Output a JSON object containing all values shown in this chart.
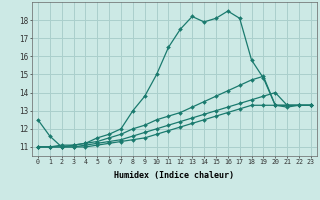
{
  "xlabel": "Humidex (Indice chaleur)",
  "background_color": "#cce9e5",
  "grid_color": "#aacfcc",
  "line_color": "#1a7a6e",
  "xlim": [
    -0.5,
    23.5
  ],
  "ylim": [
    10.5,
    19.0
  ],
  "xtick_vals": [
    0,
    1,
    2,
    3,
    4,
    5,
    6,
    7,
    8,
    9,
    10,
    11,
    12,
    13,
    14,
    15,
    16,
    17,
    18,
    19,
    20,
    21,
    22,
    23
  ],
  "ytick_vals": [
    11,
    12,
    13,
    14,
    15,
    16,
    17,
    18
  ],
  "series": [
    {
      "x": [
        0,
        1,
        2,
        3,
        4,
        5,
        6,
        7,
        8,
        9,
        10,
        11,
        12,
        13,
        14,
        15,
        16,
        17,
        18,
        19,
        20,
        21,
        22,
        23
      ],
      "y": [
        12.5,
        11.6,
        11.0,
        11.1,
        11.2,
        11.5,
        11.7,
        12.0,
        13.0,
        13.8,
        15.0,
        16.5,
        17.5,
        18.2,
        17.9,
        18.1,
        18.5,
        18.1,
        15.8,
        14.8,
        13.3,
        13.2,
        13.3,
        13.3
      ]
    },
    {
      "x": [
        0,
        1,
        2,
        3,
        4,
        5,
        6,
        7,
        8,
        9,
        10,
        11,
        12,
        13,
        14,
        15,
        16,
        17,
        18,
        19,
        20,
        21,
        22,
        23
      ],
      "y": [
        11.0,
        11.0,
        11.1,
        11.1,
        11.2,
        11.3,
        11.5,
        11.7,
        12.0,
        12.2,
        12.5,
        12.7,
        12.9,
        13.2,
        13.5,
        13.8,
        14.1,
        14.4,
        14.7,
        14.9,
        13.3,
        13.3,
        13.3,
        13.3
      ]
    },
    {
      "x": [
        0,
        1,
        2,
        3,
        4,
        5,
        6,
        7,
        8,
        9,
        10,
        11,
        12,
        13,
        14,
        15,
        16,
        17,
        18,
        19,
        20,
        21,
        22,
        23
      ],
      "y": [
        11.0,
        11.0,
        11.0,
        11.0,
        11.1,
        11.2,
        11.3,
        11.4,
        11.6,
        11.8,
        12.0,
        12.2,
        12.4,
        12.6,
        12.8,
        13.0,
        13.2,
        13.4,
        13.6,
        13.8,
        14.0,
        13.3,
        13.3,
        13.3
      ]
    },
    {
      "x": [
        0,
        1,
        2,
        3,
        4,
        5,
        6,
        7,
        8,
        9,
        10,
        11,
        12,
        13,
        14,
        15,
        16,
        17,
        18,
        19,
        20,
        21,
        22,
        23
      ],
      "y": [
        11.0,
        11.0,
        11.0,
        11.0,
        11.0,
        11.1,
        11.2,
        11.3,
        11.4,
        11.5,
        11.7,
        11.9,
        12.1,
        12.3,
        12.5,
        12.7,
        12.9,
        13.1,
        13.3,
        13.3,
        13.3,
        13.3,
        13.3,
        13.3
      ]
    }
  ]
}
